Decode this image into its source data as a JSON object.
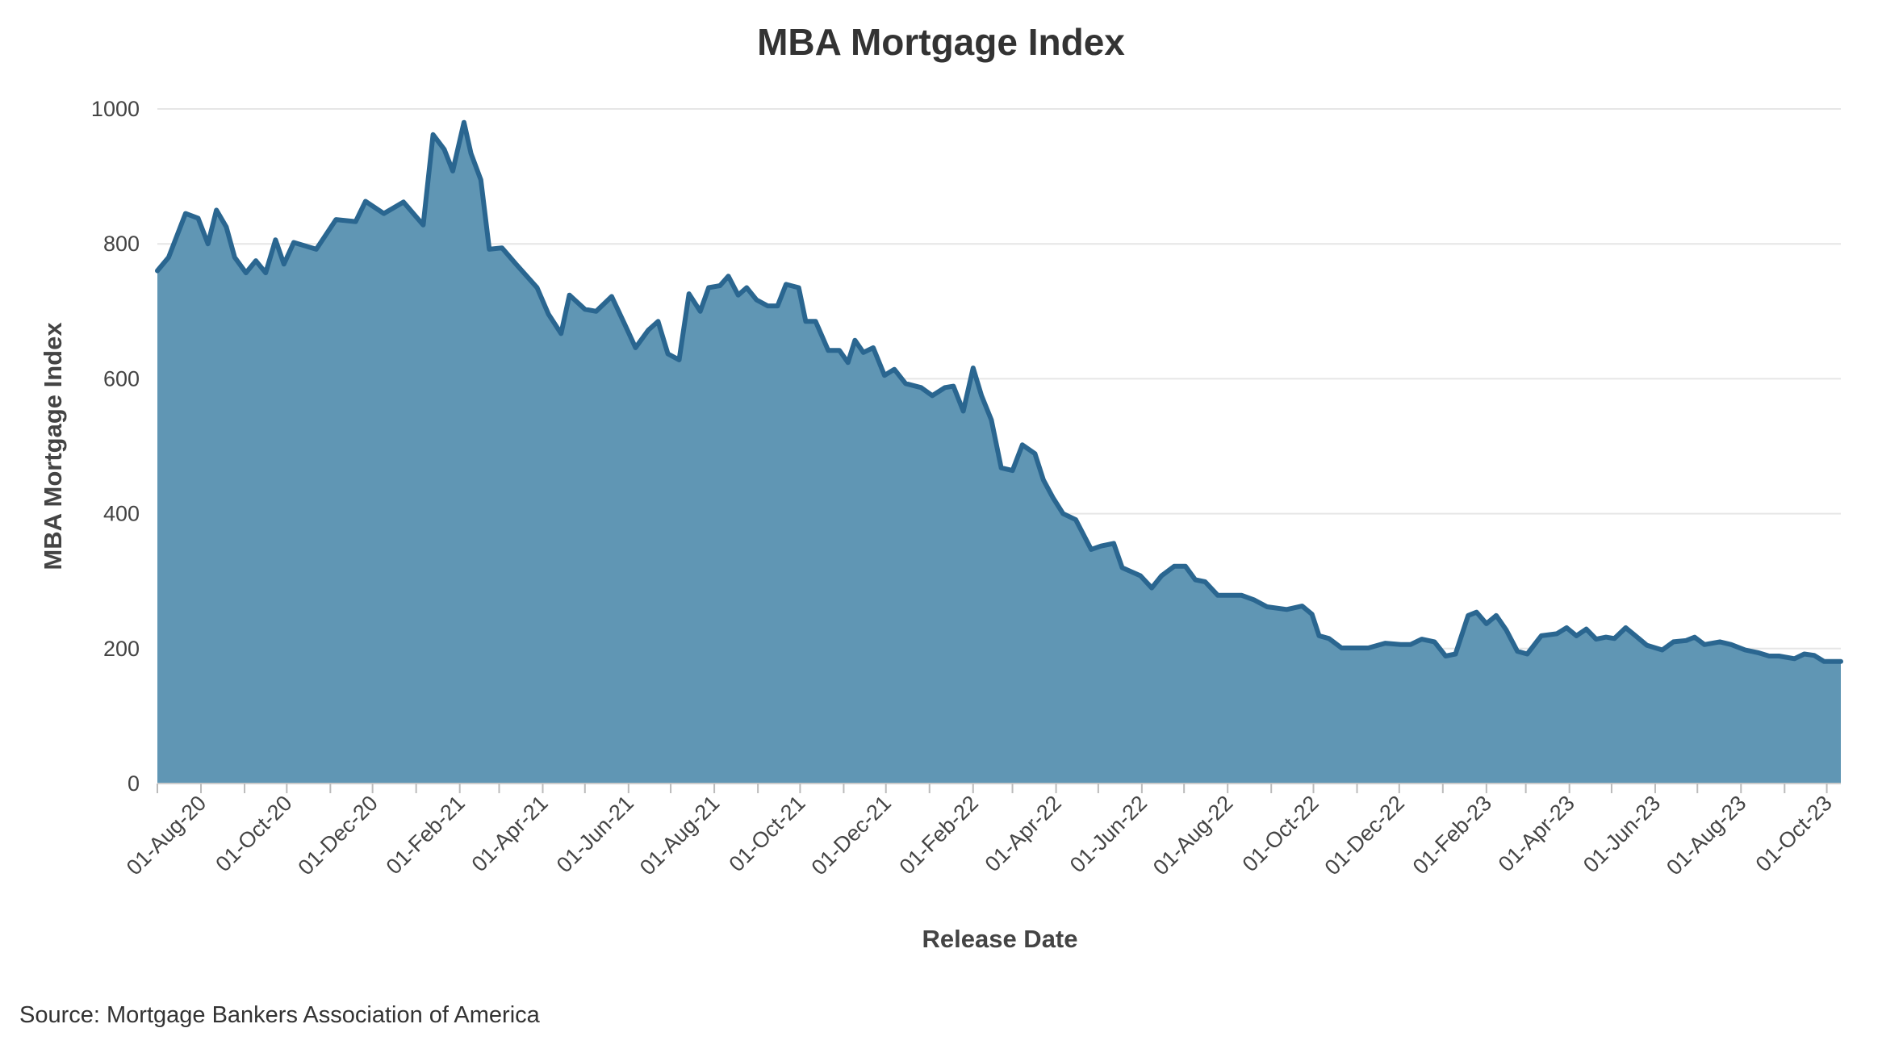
{
  "chart_data": {
    "type": "area",
    "title": "MBA Mortgage Index",
    "x_label": "Release Date",
    "y_label": "MBA Mortgage Index",
    "source": "Source: Mortgage Bankers Association of America",
    "color": "#6096b4",
    "line_color": "#2a6690",
    "grid": true,
    "xlim": [
      "2020-07-01",
      "2023-10-11"
    ],
    "ylim": [
      0,
      1000
    ],
    "yticks": [
      0,
      200,
      400,
      600,
      800,
      1000
    ],
    "xticks": [
      {
        "value": "2020-08-01",
        "label": "01-Aug-20"
      },
      {
        "value": "2020-10-01",
        "label": "01-Oct-20"
      },
      {
        "value": "2020-12-01",
        "label": "01-Dec-20"
      },
      {
        "value": "2021-02-01",
        "label": "01-Feb-21"
      },
      {
        "value": "2021-04-01",
        "label": "01-Apr-21"
      },
      {
        "value": "2021-06-01",
        "label": "01-Jun-21"
      },
      {
        "value": "2021-08-01",
        "label": "01-Aug-21"
      },
      {
        "value": "2021-10-01",
        "label": "01-Oct-21"
      },
      {
        "value": "2021-12-01",
        "label": "01-Dec-21"
      },
      {
        "value": "2022-02-01",
        "label": "01-Feb-22"
      },
      {
        "value": "2022-04-01",
        "label": "01-Apr-22"
      },
      {
        "value": "2022-06-01",
        "label": "01-Jun-22"
      },
      {
        "value": "2022-08-01",
        "label": "01-Aug-22"
      },
      {
        "value": "2022-10-01",
        "label": "01-Oct-22"
      },
      {
        "value": "2022-12-01",
        "label": "01-Dec-22"
      },
      {
        "value": "2023-02-01",
        "label": "01-Feb-23"
      },
      {
        "value": "2023-04-01",
        "label": "01-Apr-23"
      },
      {
        "value": "2023-06-01",
        "label": "01-Jun-23"
      },
      {
        "value": "2023-08-01",
        "label": "01-Aug-23"
      },
      {
        "value": "2023-10-01",
        "label": "01-Oct-23"
      }
    ],
    "xticks_minor": [
      "2020-07-01",
      "2020-09-01",
      "2020-11-01",
      "2021-01-01",
      "2021-03-01",
      "2021-05-01",
      "2021-07-01",
      "2021-09-01",
      "2021-11-01",
      "2022-01-01",
      "2022-03-01",
      "2022-05-01",
      "2022-07-01",
      "2022-09-01",
      "2022-11-01",
      "2023-01-01",
      "2023-03-01",
      "2023-05-01",
      "2023-07-01",
      "2023-09-01"
    ],
    "x": [
      "2020-07-01",
      "2020-07-09",
      "2020-07-21",
      "2020-07-30",
      "2020-08-06",
      "2020-08-12",
      "2020-08-19",
      "2020-08-25",
      "2020-09-02",
      "2020-09-09",
      "2020-09-16",
      "2020-09-23",
      "2020-09-29",
      "2020-10-06",
      "2020-10-22",
      "2020-11-05",
      "2020-11-19",
      "2020-11-26",
      "2020-12-09",
      "2020-12-23",
      "2021-01-06",
      "2021-01-13",
      "2021-01-21",
      "2021-01-27",
      "2021-02-04",
      "2021-02-09",
      "2021-02-16",
      "2021-02-22",
      "2021-03-03",
      "2021-03-13",
      "2021-03-28",
      "2021-04-05",
      "2021-04-14",
      "2021-04-20",
      "2021-05-01",
      "2021-05-09",
      "2021-05-20",
      "2021-05-29",
      "2021-06-06",
      "2021-06-15",
      "2021-06-22",
      "2021-06-29",
      "2021-07-07",
      "2021-07-14",
      "2021-07-22",
      "2021-07-28",
      "2021-08-05",
      "2021-08-11",
      "2021-08-18",
      "2021-08-24",
      "2021-08-31",
      "2021-09-08",
      "2021-09-15",
      "2021-09-21",
      "2021-09-30",
      "2021-10-05",
      "2021-10-12",
      "2021-10-21",
      "2021-10-29",
      "2021-11-04",
      "2021-11-09",
      "2021-11-15",
      "2021-11-22",
      "2021-11-30",
      "2021-12-07",
      "2021-12-15",
      "2021-12-26",
      "2022-01-03",
      "2022-01-12",
      "2022-01-18",
      "2022-01-25",
      "2022-02-01",
      "2022-02-07",
      "2022-02-14",
      "2022-02-21",
      "2022-03-01",
      "2022-03-08",
      "2022-03-17",
      "2022-03-23",
      "2022-03-30",
      "2022-04-06",
      "2022-04-15",
      "2022-04-26",
      "2022-05-03",
      "2022-05-12",
      "2022-05-18",
      "2022-05-31",
      "2022-06-08",
      "2022-06-15",
      "2022-06-24",
      "2022-07-02",
      "2022-07-09",
      "2022-07-16",
      "2022-07-25",
      "2022-08-03",
      "2022-08-11",
      "2022-08-20",
      "2022-08-29",
      "2022-09-12",
      "2022-09-23",
      "2022-09-30",
      "2022-10-05",
      "2022-10-12",
      "2022-10-21",
      "2022-11-09",
      "2022-11-21",
      "2022-12-02",
      "2022-12-09",
      "2022-12-17",
      "2022-12-26",
      "2023-01-03",
      "2023-01-10",
      "2023-01-19",
      "2023-01-25",
      "2023-02-01",
      "2023-02-08",
      "2023-02-15",
      "2023-02-23",
      "2023-03-02",
      "2023-03-12",
      "2023-03-23",
      "2023-03-30",
      "2023-04-06",
      "2023-04-13",
      "2023-04-20",
      "2023-04-27",
      "2023-05-03",
      "2023-05-11",
      "2023-05-18",
      "2023-05-26",
      "2023-06-06",
      "2023-06-14",
      "2023-06-23",
      "2023-06-29",
      "2023-07-06",
      "2023-07-17",
      "2023-07-25",
      "2023-08-04",
      "2023-08-13",
      "2023-08-21",
      "2023-08-28",
      "2023-09-08",
      "2023-09-15",
      "2023-09-22",
      "2023-09-29",
      "2023-10-11"
    ],
    "values": [
      760,
      780,
      845,
      838,
      800,
      850,
      825,
      780,
      757,
      775,
      757,
      806,
      770,
      802,
      792,
      836,
      833,
      863,
      845,
      862,
      828,
      962,
      940,
      908,
      980,
      934,
      895,
      792,
      794,
      770,
      735,
      696,
      667,
      724,
      703,
      700,
      722,
      682,
      646,
      672,
      685,
      637,
      628,
      726,
      700,
      735,
      738,
      752,
      724,
      735,
      717,
      708,
      708,
      740,
      735,
      685,
      685,
      642,
      642,
      624,
      657,
      639,
      646,
      605,
      614,
      593,
      587,
      575,
      587,
      589,
      552,
      616,
      575,
      539,
      468,
      464,
      502,
      489,
      450,
      423,
      400,
      391,
      347,
      352,
      356,
      320,
      308,
      290,
      308,
      322,
      322,
      302,
      299,
      279,
      279,
      279,
      272,
      262,
      258,
      263,
      251,
      219,
      215,
      201,
      201,
      208,
      206,
      206,
      214,
      210,
      189,
      192,
      249,
      254,
      237,
      249,
      228,
      196,
      192,
      219,
      222,
      231,
      219,
      229,
      214,
      217,
      215,
      231,
      219,
      205,
      198,
      210,
      212,
      217,
      206,
      210,
      206,
      198,
      194,
      189,
      189,
      185,
      192,
      190,
      181,
      181
    ]
  }
}
